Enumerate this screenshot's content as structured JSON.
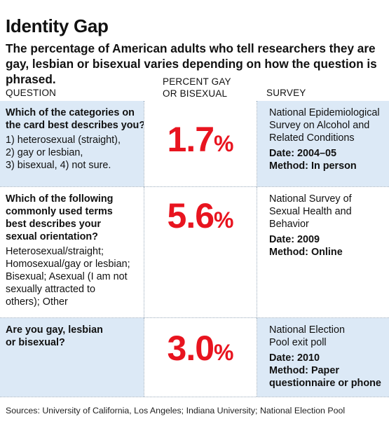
{
  "title": "Identity Gap",
  "subtitle": "The percentage of American adults who tell researchers they are gay, lesbian or bisexual varies depending on how the question is phrased.",
  "headers": {
    "question": "QUESTION",
    "percent": "PERCENT GAY\nOR BISEXUAL",
    "survey": "SURVEY"
  },
  "chart_data": {
    "type": "table",
    "columns": [
      "QUESTION",
      "PERCENT GAY OR BISEXUAL",
      "SURVEY"
    ],
    "rows": [
      {
        "question": "Which of the categories on the card best describes you?",
        "options": "1) heterosexual (straight),\n2) gay or lesbian,\n3) bisexual, 4) not sure.",
        "value": "1.7",
        "unit": "%",
        "survey": "National Epidemiological Survey on Alcohol and Related Conditions",
        "date": "Date: 2004–05",
        "method": "Method: In person"
      },
      {
        "question": "Which of the following commonly used terms best describes your sexual orientation?",
        "options": "Heterosexual/straight;\nHomosexual/gay or lesbian;\nBisexual; Asexual (I am not\nsexually attracted to\nothers); Other",
        "value": "5.6",
        "unit": "%",
        "survey": "National Survey of Sexual Health and Behavior",
        "date": "Date: 2009",
        "method": "Method: Online"
      },
      {
        "question": "Are you gay, lesbian or bisexual?",
        "options": "",
        "value": "3.0",
        "unit": "%",
        "survey": "National Election Pool exit poll",
        "date": "Date: 2010",
        "method": "Method: Paper questionnaire or phone"
      }
    ]
  },
  "sources": "Sources: University of California, Los Angeles; Indiana University; National Election Pool",
  "colors": {
    "highlight": "#e8141f",
    "row_shade": "#dce9f6"
  }
}
